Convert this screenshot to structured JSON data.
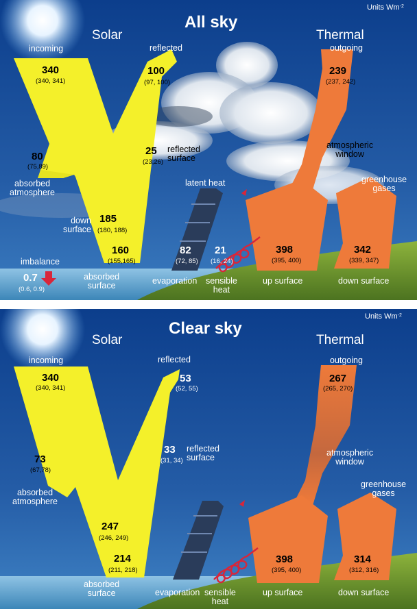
{
  "units": "Units Wm",
  "units_exponent": "-2",
  "colors": {
    "solar": "#f4f02a",
    "thermal": "#ee7a3a",
    "sky_top": "#0c3e8c",
    "sky_bottom": "#3978be",
    "ground": "#5f8a2a",
    "sensible": "#d8263a"
  },
  "all_sky": {
    "title": "All sky",
    "solar": "Solar",
    "thermal": "Thermal",
    "incoming": {
      "label": "incoming",
      "value": "340",
      "range": "(340, 341)"
    },
    "reflected": {
      "label": "reflected",
      "value": "100",
      "range": "(97, 100)"
    },
    "absorbed_atmosphere": {
      "label_line1": "absorbed",
      "label_line2": "atmosphere",
      "value": "80",
      "range": "(75,89)"
    },
    "reflected_surface": {
      "label_line1": "reflected",
      "label_line2": "surface",
      "value": "25",
      "range": "(23,26)"
    },
    "down_surface_solar": {
      "label_line1": "down",
      "label_line2": "surface",
      "value": "185",
      "range": "(180, 188)"
    },
    "absorbed_surface": {
      "label_line1": "absorbed",
      "label_line2": "surface",
      "value": "160",
      "range": "(155,165)"
    },
    "imbalance": {
      "label": "imbalance",
      "value": "0.7",
      "range": "(0.6, 0.9)"
    },
    "latent_heat": "latent heat",
    "evaporation": {
      "label": "evaporation",
      "value": "82",
      "range": "(72, 85)"
    },
    "sensible_heat": {
      "label_line1": "sensible",
      "label_line2": "heat",
      "value": "21",
      "range": "(16, 24)"
    },
    "outgoing": {
      "label": "outgoing",
      "value": "239",
      "range": "(237, 242)"
    },
    "atmospheric_window": {
      "label_line1": "atmospheric",
      "label_line2": "window"
    },
    "greenhouse_gases": {
      "label_line1": "greenhouse",
      "label_line2": "gases"
    },
    "up_surface": {
      "label": "up surface",
      "value": "398",
      "range": "(395, 400)"
    },
    "down_surface": {
      "label": "down surface",
      "value": "342",
      "range": "(339, 347)"
    }
  },
  "clear_sky": {
    "title": "Clear sky",
    "solar": "Solar",
    "thermal": "Thermal",
    "incoming": {
      "label": "incoming",
      "value": "340",
      "range": "(340, 341)"
    },
    "reflected": {
      "label": "reflected",
      "value": "53",
      "range": "(52, 55)"
    },
    "absorbed_atmosphere": {
      "label_line1": "absorbed",
      "label_line2": "atmosphere",
      "value": "73",
      "range": "(67,78)"
    },
    "reflected_surface": {
      "label_line1": "reflected",
      "label_line2": "surface",
      "value": "33",
      "range": "(31, 34)"
    },
    "down_surface_solar": {
      "value": "247",
      "range": "(246, 249)"
    },
    "absorbed_surface": {
      "label_line1": "absorbed",
      "label_line2": "surface",
      "value": "214",
      "range": "(211, 218)"
    },
    "evaporation": {
      "label": "evaporation"
    },
    "sensible_heat": {
      "label_line1": "sensible",
      "label_line2": "heat"
    },
    "outgoing": {
      "label": "outgoing",
      "value": "267",
      "range": "(265, 270)"
    },
    "atmospheric_window": {
      "label_line1": "atmospheric",
      "label_line2": "window"
    },
    "greenhouse_gases": {
      "label_line1": "greenhouse",
      "label_line2": "gases"
    },
    "up_surface": {
      "label": "up surface",
      "value": "398",
      "range": "(395, 400)"
    },
    "down_surface": {
      "label": "down surface",
      "value": "314",
      "range": "(312, 316)"
    }
  }
}
